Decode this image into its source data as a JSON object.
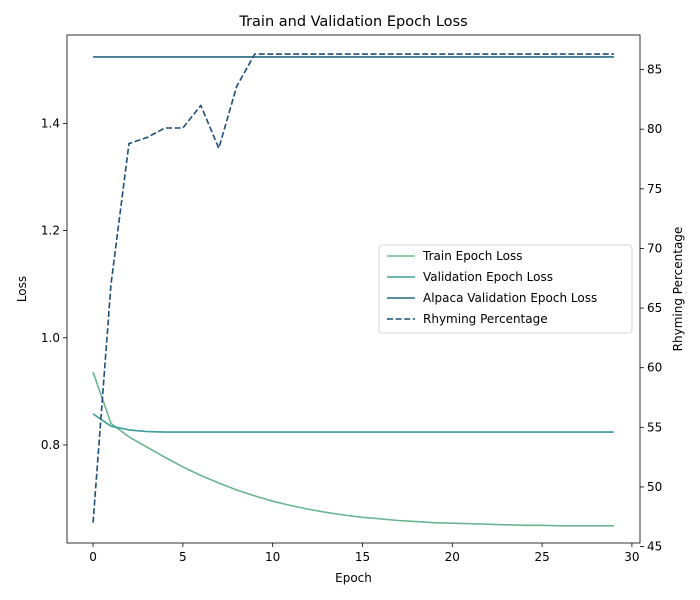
{
  "chart_data": {
    "type": "line",
    "title": "Train and Validation Epoch Loss",
    "xlabel": "Epoch",
    "ylabel": "Loss",
    "y2label": "Rhyming Percentage",
    "xlim": [
      -1.45,
      30.45
    ],
    "ylim": [
      0.617,
      1.565
    ],
    "y2lim": [
      45.3,
      87.9
    ],
    "xticks": [
      0,
      5,
      10,
      15,
      20,
      25,
      30
    ],
    "yticks": [
      0.8,
      1.0,
      1.2,
      1.4
    ],
    "y2ticks": [
      45,
      50,
      55,
      60,
      65,
      70,
      75,
      80,
      85
    ],
    "legend_position": "center-right",
    "grid": false,
    "series": [
      {
        "name": "Train Epoch Loss",
        "axis": "left",
        "color": "#6ab58f",
        "style": "solid",
        "x": [
          0,
          1,
          2,
          3,
          4,
          5,
          6,
          7,
          8,
          9,
          10,
          11,
          12,
          13,
          14,
          15,
          16,
          17,
          18,
          19,
          20,
          21,
          22,
          23,
          24,
          25,
          26,
          27,
          28,
          29
        ],
        "values": [
          0.936,
          0.84,
          0.815,
          0.796,
          0.777,
          0.759,
          0.743,
          0.729,
          0.716,
          0.705,
          0.695,
          0.687,
          0.68,
          0.674,
          0.669,
          0.665,
          0.662,
          0.659,
          0.657,
          0.655,
          0.654,
          0.653,
          0.652,
          0.651,
          0.65,
          0.65,
          0.649,
          0.649,
          0.649,
          0.649
        ]
      },
      {
        "name": "Validation Epoch Loss",
        "axis": "left",
        "color": "#3d9c9a",
        "style": "solid",
        "x": [
          0,
          1,
          2,
          3,
          4,
          5,
          6,
          7,
          8,
          9,
          10,
          11,
          12,
          13,
          14,
          15,
          16,
          17,
          18,
          19,
          20,
          21,
          22,
          23,
          24,
          25,
          26,
          27,
          28,
          29
        ],
        "values": [
          0.858,
          0.835,
          0.828,
          0.825,
          0.824,
          0.824,
          0.824,
          0.824,
          0.824,
          0.824,
          0.824,
          0.824,
          0.824,
          0.824,
          0.824,
          0.824,
          0.824,
          0.824,
          0.824,
          0.824,
          0.824,
          0.824,
          0.824,
          0.824,
          0.824,
          0.824,
          0.824,
          0.824,
          0.824,
          0.824
        ]
      },
      {
        "name": "Alpaca Validation Epoch Loss",
        "axis": "left",
        "color": "#266b82",
        "style": "solid",
        "x": [
          0,
          29
        ],
        "values": [
          1.524,
          1.524
        ]
      },
      {
        "name": "Rhyming Percentage",
        "axis": "right",
        "color": "#1f4e79",
        "style": "dashed",
        "x": [
          0,
          1,
          2,
          3,
          4,
          5,
          6,
          7,
          8,
          9,
          10,
          11,
          12,
          13,
          14,
          15,
          16,
          17,
          18,
          19,
          20,
          21,
          22,
          23,
          24,
          25,
          26,
          27,
          28,
          29
        ],
        "values": [
          47.0,
          67.0,
          78.8,
          79.3,
          80.1,
          80.1,
          82.0,
          78.4,
          83.6,
          86.3,
          86.3,
          86.3,
          86.3,
          86.3,
          86.3,
          86.3,
          86.3,
          86.3,
          86.3,
          86.3,
          86.3,
          86.3,
          86.3,
          86.3,
          86.3,
          86.3,
          86.3,
          86.3,
          86.3,
          86.3
        ]
      }
    ]
  }
}
